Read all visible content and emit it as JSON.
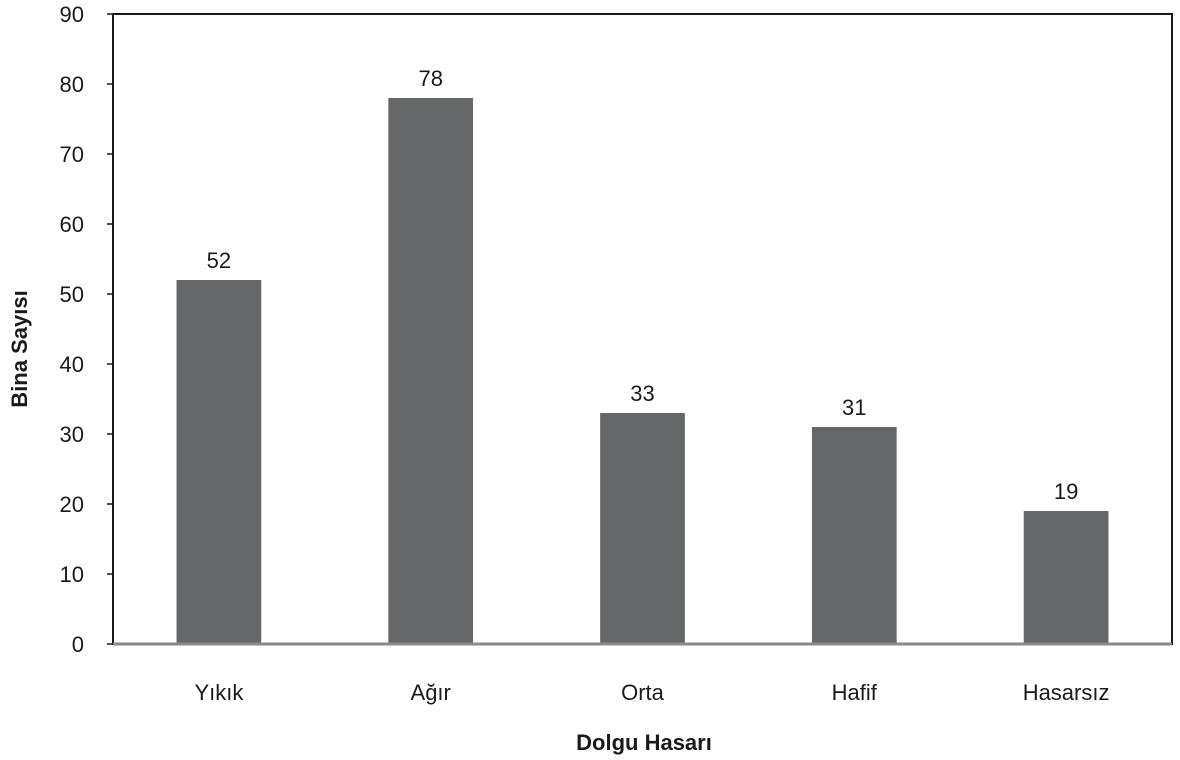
{
  "chart_data": {
    "type": "bar",
    "title": "",
    "xlabel": "Dolgu Hasarı",
    "ylabel": "Bina Sayısı",
    "categories": [
      "Yıkık",
      "Ağır",
      "Orta",
      "Hafif",
      "Hasarsız"
    ],
    "values": [
      52,
      78,
      33,
      31,
      19
    ],
    "data_labels": [
      "52",
      "78",
      "33",
      "31",
      "19"
    ],
    "ylim": [
      0,
      90
    ],
    "yticks": [
      0,
      10,
      20,
      30,
      40,
      50,
      60,
      70,
      80,
      90
    ],
    "ytick_labels": [
      "0",
      "10",
      "20",
      "30",
      "40",
      "50",
      "60",
      "70",
      "80",
      "90"
    ],
    "grid": false,
    "legend": "none",
    "colors": {
      "bar": "#666769",
      "frame": "#1a1a1a",
      "baseline": "#8a8a8a"
    }
  }
}
